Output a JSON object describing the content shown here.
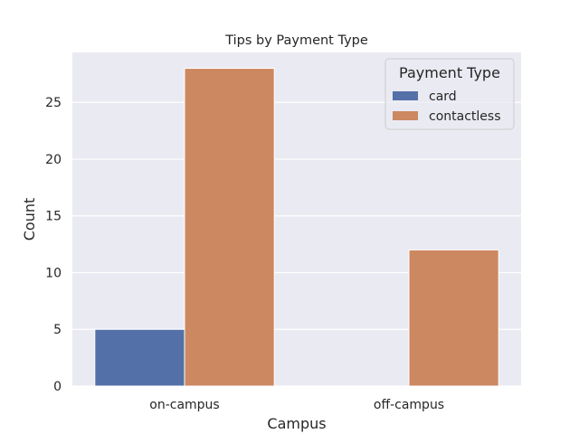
{
  "chart_data": {
    "type": "bar",
    "title": "Tips by Payment Type",
    "xlabel": "Campus",
    "ylabel": "Count",
    "categories": [
      "on-campus",
      "off-campus"
    ],
    "series": [
      {
        "name": "card",
        "values": [
          5,
          0
        ],
        "color": "#5470a8"
      },
      {
        "name": "contactless",
        "values": [
          28,
          12
        ],
        "color": "#cc8860"
      }
    ],
    "ylim": [
      0,
      29.4
    ],
    "yticks": [
      0,
      5,
      10,
      15,
      20,
      25
    ],
    "legend": {
      "title": "Payment Type",
      "placement": "top-right"
    },
    "grid": true,
    "background": "#eaeaf2"
  }
}
